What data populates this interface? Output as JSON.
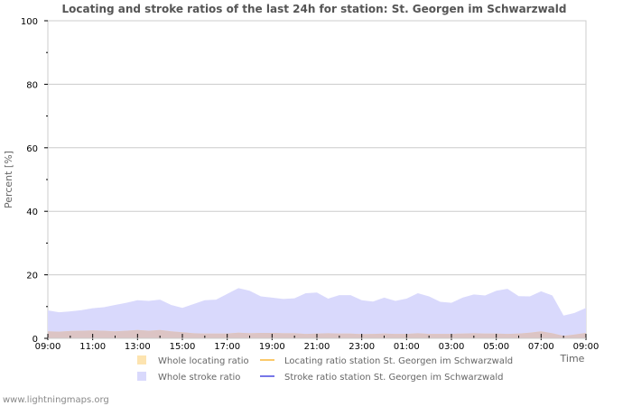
{
  "chart_data": {
    "type": "area",
    "title": "Locating and stroke ratios of the last 24h for station: St. Georgen im Schwarzwald",
    "xlabel": "Time",
    "ylabel": "Percent   [%]",
    "ylim": [
      0,
      100
    ],
    "yticks": [
      0,
      20,
      40,
      60,
      80,
      100
    ],
    "xtick_labels": [
      "09:00",
      "11:00",
      "13:00",
      "15:00",
      "17:00",
      "19:00",
      "21:00",
      "23:00",
      "01:00",
      "03:00",
      "05:00",
      "07:00",
      "09:00"
    ],
    "grid": true,
    "legend_position": "bottom",
    "x_hours": [
      0,
      0.5,
      1,
      1.5,
      2,
      2.5,
      3,
      3.5,
      4,
      4.5,
      5,
      5.5,
      6,
      6.5,
      7,
      7.5,
      8,
      8.5,
      9,
      9.5,
      10,
      10.5,
      11,
      11.5,
      12,
      12.5,
      13,
      13.5,
      14,
      14.5,
      15,
      15.5,
      16,
      16.5,
      17,
      17.5,
      18,
      18.5,
      19,
      19.5,
      20,
      20.5,
      21,
      21.5,
      22,
      22.5,
      23,
      23.5,
      24
    ],
    "series": [
      {
        "name": "Whole stroke ratio",
        "kind": "area",
        "color": "#d9d9fc",
        "values": [
          8.8,
          8.2,
          8.5,
          8.9,
          9.5,
          9.8,
          10.5,
          11.2,
          12.0,
          11.8,
          12.2,
          10.5,
          9.6,
          10.8,
          12.0,
          12.2,
          14.0,
          15.8,
          15.0,
          13.2,
          12.8,
          12.4,
          12.6,
          14.2,
          14.4,
          12.5,
          13.6,
          13.6,
          12.0,
          11.6,
          12.8,
          11.8,
          12.5,
          14.2,
          13.2,
          11.5,
          11.2,
          12.8,
          13.8,
          13.5,
          15.0,
          15.6,
          13.3,
          13.2,
          14.8,
          13.5,
          7.2,
          8.0,
          9.6
        ]
      },
      {
        "name": "Whole locating ratio",
        "kind": "area",
        "color": "#fde4b0",
        "values": [
          2.2,
          2.1,
          2.3,
          2.4,
          2.5,
          2.4,
          2.2,
          2.4,
          2.6,
          2.4,
          2.6,
          2.2,
          1.9,
          1.6,
          1.5,
          1.5,
          1.5,
          1.8,
          1.6,
          1.7,
          1.7,
          1.6,
          1.6,
          1.4,
          1.5,
          1.6,
          1.5,
          1.5,
          1.3,
          1.4,
          1.5,
          1.4,
          1.4,
          1.6,
          1.4,
          1.4,
          1.4,
          1.5,
          1.6,
          1.5,
          1.5,
          1.4,
          1.5,
          1.8,
          2.2,
          1.6,
          0.8,
          1.2,
          1.7
        ]
      },
      {
        "name": "Locating ratio station St. Georgen im Schwarzwald",
        "kind": "line",
        "color": "#fbc96b",
        "values": []
      },
      {
        "name": "Stroke ratio station St. Georgen im Schwarzwald",
        "kind": "line",
        "color": "#7777e8",
        "values": []
      }
    ]
  },
  "legend": {
    "whole_locating": "Whole locating ratio",
    "whole_stroke": "Whole stroke ratio",
    "station_locating": "Locating ratio station St. Georgen im Schwarzwald",
    "station_stroke": "Stroke ratio station St. Georgen im Schwarzwald"
  },
  "footer": "www.lightningmaps.org"
}
